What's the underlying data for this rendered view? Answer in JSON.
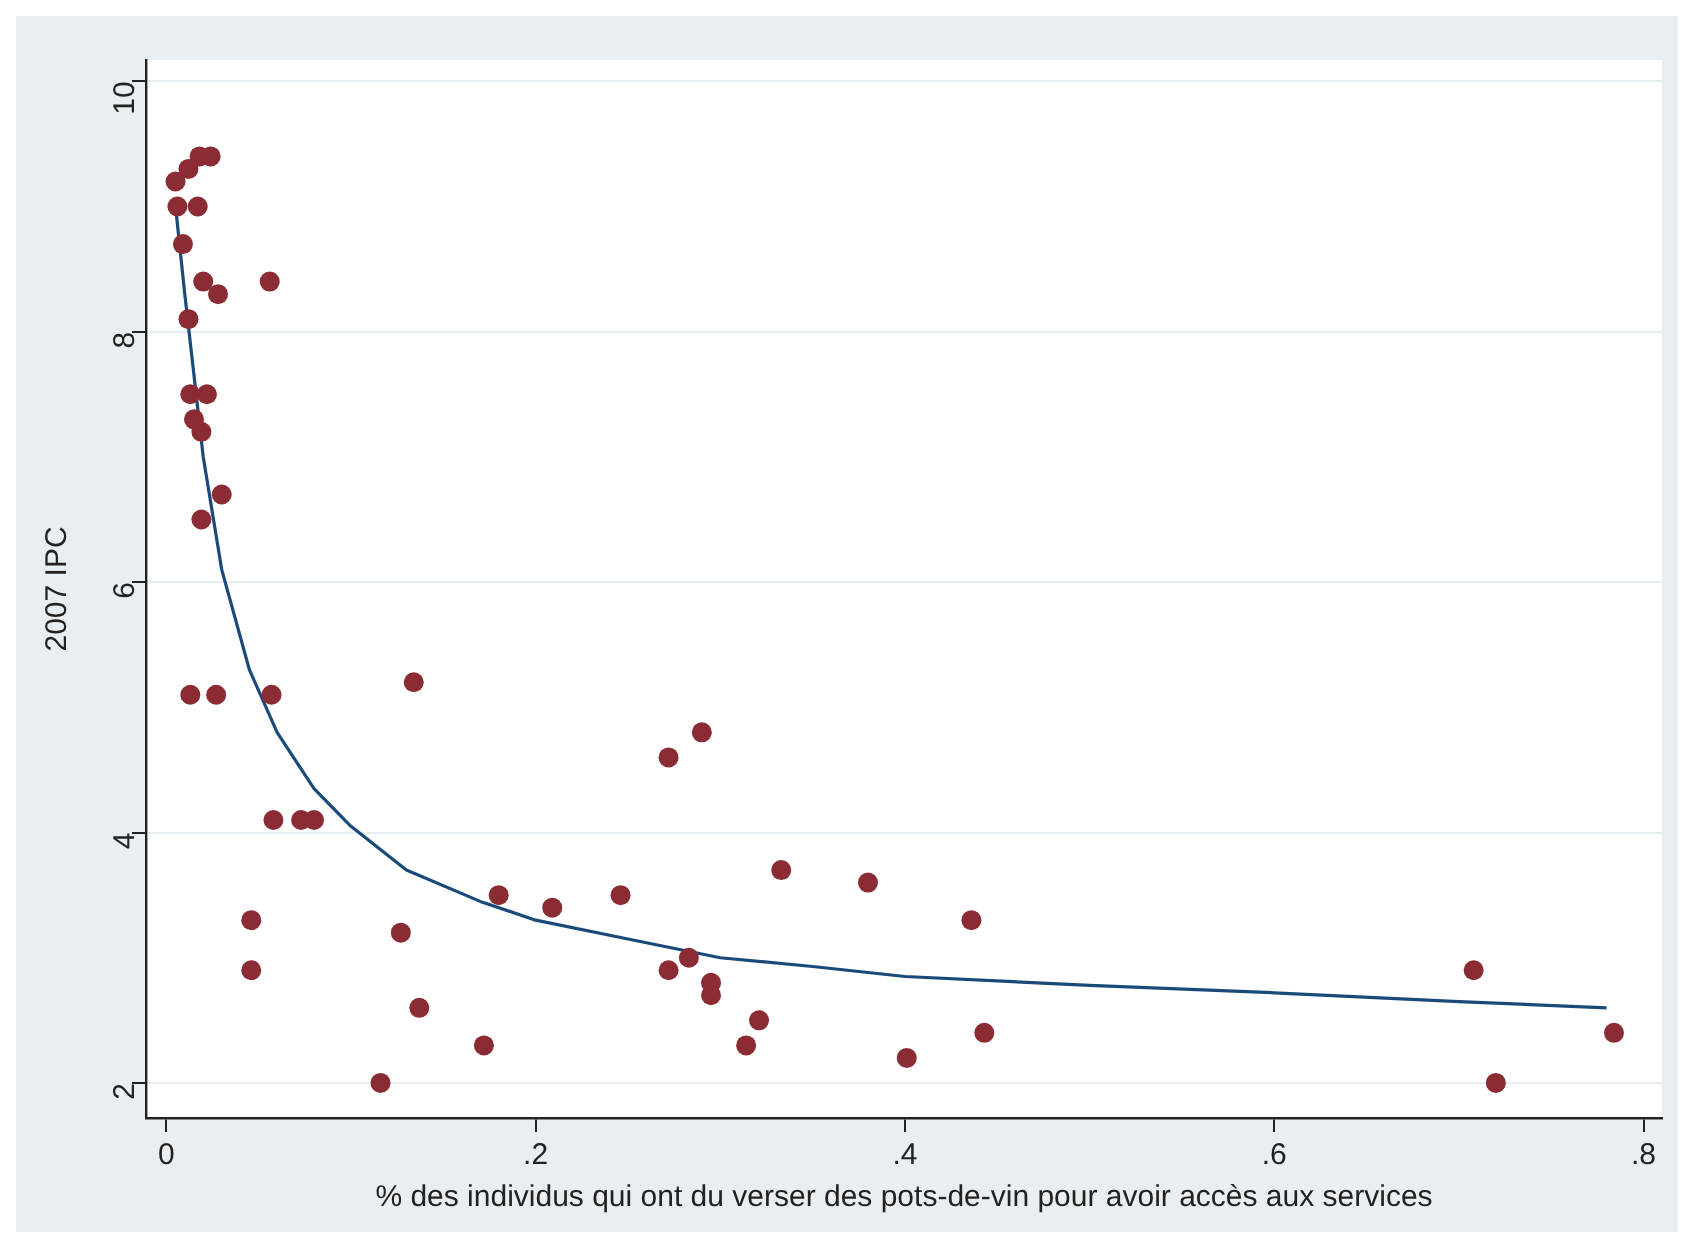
{
  "chart_data": {
    "type": "scatter",
    "xlabel": "% des individus qui ont du verser des pots-de-vin pour avoir accès aux services",
    "ylabel": "2007 IPC",
    "xlim": [
      -0.011,
      0.81
    ],
    "ylim": [
      1.72,
      10.17
    ],
    "xticks": [
      {
        "value": 0,
        "label": "0"
      },
      {
        "value": 0.2,
        "label": ".2"
      },
      {
        "value": 0.4,
        "label": ".4"
      },
      {
        "value": 0.6,
        "label": ".6"
      },
      {
        "value": 0.8,
        "label": ".8"
      }
    ],
    "yticks": [
      2,
      4,
      6,
      8,
      10
    ],
    "grid": "y",
    "legend": false,
    "marker": "circle",
    "series": [
      {
        "color": "#8b2c35",
        "x": [
          0.005,
          0.006,
          0.009,
          0.012,
          0.018,
          0.024,
          0.017,
          0.02,
          0.028,
          0.056,
          0.012,
          0.013,
          0.022,
          0.015,
          0.019,
          0.03,
          0.019,
          0.013,
          0.027,
          0.057,
          0.134,
          0.058,
          0.073,
          0.08,
          0.046,
          0.046,
          0.127,
          0.137,
          0.116,
          0.172,
          0.18,
          0.209,
          0.246,
          0.272,
          0.29,
          0.272,
          0.283,
          0.295,
          0.295,
          0.314,
          0.321,
          0.333,
          0.38,
          0.401,
          0.436,
          0.443,
          0.708,
          0.72,
          0.784
        ],
        "values": [
          9.2,
          9.0,
          8.7,
          9.3,
          9.4,
          9.4,
          9.0,
          8.4,
          8.3,
          8.4,
          8.1,
          7.5,
          7.5,
          7.3,
          7.2,
          6.7,
          6.5,
          5.1,
          5.1,
          5.1,
          5.2,
          4.1,
          4.1,
          4.1,
          3.3,
          2.9,
          3.2,
          2.6,
          2.0,
          2.3,
          3.5,
          3.4,
          3.5,
          4.6,
          4.8,
          2.9,
          3.0,
          2.8,
          2.7,
          2.3,
          2.5,
          3.7,
          3.6,
          2.2,
          3.3,
          2.4,
          2.9,
          2.0,
          2.4
        ]
      },
      {
        "type": "line",
        "color": "#1a4a7a",
        "marker": "none",
        "x": [
          0.005,
          0.01,
          0.02,
          0.03,
          0.045,
          0.06,
          0.08,
          0.1,
          0.13,
          0.17,
          0.2,
          0.25,
          0.3,
          0.35,
          0.4,
          0.5,
          0.6,
          0.7,
          0.78
        ],
        "values": [
          9.0,
          8.3,
          7.0,
          6.1,
          5.3,
          4.8,
          4.35,
          4.05,
          3.7,
          3.45,
          3.3,
          3.15,
          3.0,
          2.93,
          2.85,
          2.78,
          2.72,
          2.65,
          2.6
        ]
      }
    ]
  }
}
